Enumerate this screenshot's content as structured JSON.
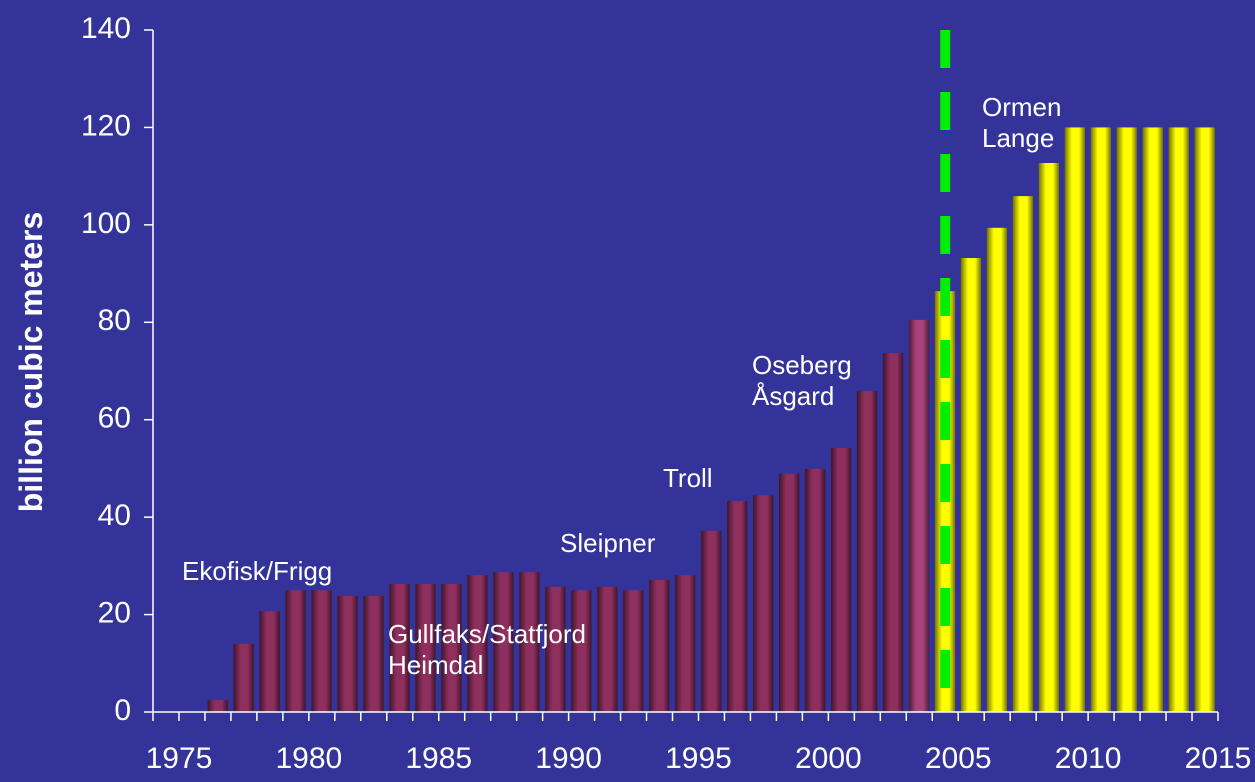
{
  "chart_data": {
    "type": "bar",
    "y_label": "billion cubic meters",
    "x": [
      1977,
      1978,
      1979,
      1980,
      1981,
      1982,
      1983,
      1984,
      1985,
      1986,
      1987,
      1988,
      1989,
      1990,
      1991,
      1992,
      1993,
      1994,
      1995,
      1996,
      1997,
      1998,
      1999,
      2000,
      2001,
      2002,
      2003,
      2004,
      2005,
      2006,
      2007,
      2008,
      2009,
      2010,
      2011,
      2012,
      2013,
      2014,
      2015
    ],
    "values": [
      2.5,
      14,
      20.7,
      25,
      25,
      23.8,
      23.8,
      26.3,
      26.3,
      26.3,
      28.1,
      28.7,
      28.7,
      25.7,
      25,
      25.7,
      25,
      27.1,
      28.1,
      37.2,
      43.3,
      44.5,
      48.9,
      49.9,
      54.2,
      65.9,
      73.7,
      80.5,
      86.4,
      93.2,
      99.4,
      105.9,
      112.7,
      120,
      120,
      120,
      120,
      120,
      120
    ],
    "colors": [
      "#8e2f5e",
      "#8e2f5e",
      "#8e2f5e",
      "#8e2f5e",
      "#8e2f5e",
      "#8e2f5e",
      "#8e2f5e",
      "#8e2f5e",
      "#8e2f5e",
      "#8e2f5e",
      "#8e2f5e",
      "#8e2f5e",
      "#8e2f5e",
      "#8e2f5e",
      "#8e2f5e",
      "#8e2f5e",
      "#8e2f5e",
      "#8e2f5e",
      "#8e2f5e",
      "#8e2f5e",
      "#8e2f5e",
      "#8e2f5e",
      "#8e2f5e",
      "#8e2f5e",
      "#8e2f5e",
      "#8e2f5e",
      "#8e2f5e",
      "#a8427a",
      "#ffff00",
      "#ffff00",
      "#ffff00",
      "#ffff00",
      "#ffff00",
      "#ffff00",
      "#ffff00",
      "#ffff00",
      "#ffff00",
      "#ffff00",
      "#ffff00"
    ],
    "ylim": [
      0,
      140
    ],
    "yticks": [
      0,
      20,
      40,
      60,
      80,
      100,
      120,
      140
    ],
    "xlim": [
      1974,
      2015
    ],
    "xticks": [
      1975,
      1980,
      1985,
      1990,
      1995,
      2000,
      2005,
      2010,
      2015
    ],
    "xminor_ticks": [
      1974,
      1975,
      1976,
      1977,
      1978,
      1979,
      1980,
      1981,
      1982,
      1983,
      1984,
      1985,
      1986,
      1987,
      1988,
      1989,
      1990,
      1991,
      1992,
      1993,
      1994,
      1995,
      1996,
      1997,
      1998,
      1999,
      2000,
      2001,
      2002,
      2003,
      2004,
      2005,
      2006,
      2007,
      2008,
      2009,
      2010,
      2011,
      2012,
      2013,
      2014,
      2015
    ],
    "divider_x": 2004.5,
    "divider_color": "#00ee00",
    "annotations": [
      [
        "Ekofisk/Frigg"
      ],
      [
        "Gullfaks/Statfjord",
        "Heimdal"
      ],
      [
        "Sleipner"
      ],
      [
        "Troll"
      ],
      [
        "Oseberg",
        "Åsgard"
      ],
      [
        "Ormen",
        "Lange"
      ]
    ]
  }
}
